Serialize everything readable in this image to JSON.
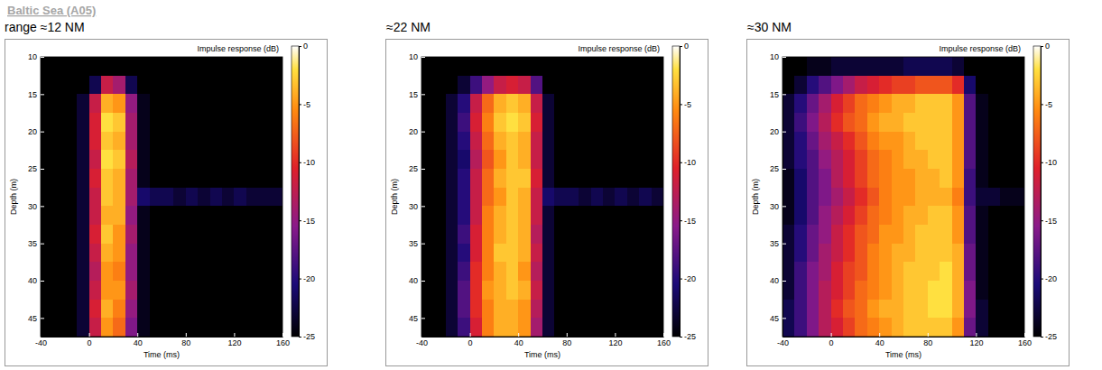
{
  "title": "Baltic Sea (A05)",
  "chart_data": [
    {
      "type": "heatmap",
      "title": "range ≈12 NM",
      "colorbar_title": "Impulse response (dB)",
      "x_label": "Time (ms)",
      "y_label": "Depth (m)",
      "xlim": [
        -40,
        160
      ],
      "ylim": [
        10,
        47.5
      ],
      "xticks": [
        -40,
        0,
        40,
        80,
        120,
        160
      ],
      "yticks": [
        10,
        15,
        20,
        25,
        30,
        35,
        40,
        45
      ],
      "color_range": [
        -25,
        0
      ],
      "color_ticks": [
        -25,
        -20,
        -15,
        -10,
        -5,
        0
      ],
      "x_bins": [
        -40,
        -30,
        -20,
        -10,
        0,
        10,
        20,
        30,
        40,
        50,
        60,
        70,
        80,
        90,
        100,
        110,
        120,
        130,
        140,
        150,
        160
      ],
      "y_bins": [
        10,
        12.5,
        15,
        17.5,
        20,
        22.5,
        25,
        27.5,
        30,
        32.5,
        35,
        37.5,
        40,
        42.5,
        45,
        47.5
      ],
      "cells": [
        [
          -25,
          -25,
          -25,
          -25,
          -25,
          -25,
          -25,
          -25,
          -25,
          -25,
          -25,
          -25,
          -25,
          -25,
          -25,
          -25,
          -25,
          -25,
          -25,
          -25
        ],
        [
          -25,
          -25,
          -25,
          -25,
          -22,
          -12,
          -14,
          -22,
          -25,
          -25,
          -25,
          -25,
          -25,
          -25,
          -25,
          -25,
          -25,
          -25,
          -25,
          -25
        ],
        [
          -25,
          -25,
          -25,
          -23,
          -12,
          -4,
          -5,
          -15,
          -24,
          -25,
          -25,
          -25,
          -25,
          -25,
          -25,
          -25,
          -25,
          -25,
          -25,
          -25
        ],
        [
          -25,
          -25,
          -25,
          -23,
          -11,
          -2,
          -3,
          -14,
          -24,
          -25,
          -25,
          -25,
          -25,
          -25,
          -25,
          -25,
          -25,
          -25,
          -25,
          -25
        ],
        [
          -25,
          -25,
          -25,
          -23,
          -11,
          -3,
          -4,
          -14,
          -24,
          -25,
          -25,
          -25,
          -25,
          -25,
          -25,
          -25,
          -25,
          -25,
          -25,
          -25
        ],
        [
          -25,
          -25,
          -25,
          -23,
          -12,
          -2,
          -3,
          -13,
          -24,
          -25,
          -25,
          -25,
          -25,
          -25,
          -25,
          -25,
          -25,
          -25,
          -25,
          -25
        ],
        [
          -25,
          -25,
          -25,
          -23,
          -11,
          -3,
          -4,
          -14,
          -24,
          -25,
          -25,
          -25,
          -25,
          -25,
          -25,
          -25,
          -25,
          -25,
          -25,
          -25
        ],
        [
          -25,
          -25,
          -25,
          -23,
          -12,
          -3,
          -4,
          -14,
          -21,
          -22,
          -22,
          -23,
          -22,
          -23,
          -22,
          -23,
          -22,
          -23,
          -23,
          -23
        ],
        [
          -25,
          -25,
          -25,
          -23,
          -12,
          -4,
          -4,
          -15,
          -24,
          -25,
          -25,
          -25,
          -25,
          -25,
          -25,
          -25,
          -25,
          -25,
          -25,
          -25
        ],
        [
          -25,
          -25,
          -25,
          -23,
          -11,
          -3,
          -5,
          -14,
          -24,
          -25,
          -25,
          -25,
          -25,
          -25,
          -25,
          -25,
          -25,
          -25,
          -25,
          -25
        ],
        [
          -25,
          -25,
          -25,
          -23,
          -12,
          -4,
          -5,
          -15,
          -24,
          -25,
          -25,
          -25,
          -25,
          -25,
          -25,
          -25,
          -25,
          -25,
          -25,
          -25
        ],
        [
          -25,
          -25,
          -25,
          -23,
          -13,
          -5,
          -6,
          -15,
          -24,
          -25,
          -25,
          -25,
          -25,
          -25,
          -25,
          -25,
          -25,
          -25,
          -25,
          -25
        ],
        [
          -25,
          -25,
          -25,
          -23,
          -12,
          -5,
          -5,
          -14,
          -24,
          -25,
          -25,
          -25,
          -25,
          -25,
          -25,
          -25,
          -25,
          -25,
          -25,
          -25
        ],
        [
          -25,
          -25,
          -25,
          -23,
          -11,
          -4,
          -6,
          -15,
          -24,
          -25,
          -25,
          -25,
          -25,
          -25,
          -25,
          -25,
          -25,
          -25,
          -25,
          -25
        ],
        [
          -25,
          -25,
          -25,
          -23,
          -12,
          -5,
          -7,
          -16,
          -24,
          -25,
          -25,
          -25,
          -25,
          -25,
          -25,
          -25,
          -25,
          -25,
          -25,
          -25
        ]
      ]
    },
    {
      "type": "heatmap",
      "title": "≈22 NM",
      "colorbar_title": "Impulse response (dB)",
      "x_label": "Time (ms)",
      "y_label": "Depth (m)",
      "xlim": [
        -40,
        160
      ],
      "ylim": [
        10,
        47.5
      ],
      "xticks": [
        -40,
        0,
        40,
        80,
        120,
        160
      ],
      "yticks": [
        10,
        15,
        20,
        25,
        30,
        35,
        40,
        45
      ],
      "color_range": [
        -25,
        0
      ],
      "color_ticks": [
        -25,
        -20,
        -15,
        -10,
        -5,
        0
      ],
      "x_bins": [
        -40,
        -30,
        -20,
        -10,
        0,
        10,
        20,
        30,
        40,
        50,
        60,
        70,
        80,
        90,
        100,
        110,
        120,
        130,
        140,
        150,
        160
      ],
      "y_bins": [
        10,
        12.5,
        15,
        17.5,
        20,
        22.5,
        25,
        27.5,
        30,
        32.5,
        35,
        37.5,
        40,
        42.5,
        45,
        47.5
      ],
      "cells": [
        [
          -25,
          -25,
          -25,
          -25,
          -25,
          -25,
          -25,
          -25,
          -25,
          -25,
          -25,
          -25,
          -25,
          -25,
          -25,
          -25,
          -25,
          -25,
          -25,
          -25
        ],
        [
          -25,
          -25,
          -25,
          -23,
          -19,
          -15,
          -12,
          -11,
          -12,
          -18,
          -25,
          -25,
          -25,
          -25,
          -25,
          -25,
          -25,
          -25,
          -25,
          -25
        ],
        [
          -25,
          -25,
          -23,
          -20,
          -12,
          -7,
          -4,
          -3,
          -4,
          -12,
          -23,
          -25,
          -25,
          -25,
          -25,
          -25,
          -25,
          -25,
          -25,
          -25
        ],
        [
          -25,
          -25,
          -23,
          -19,
          -11,
          -6,
          -3,
          -2,
          -3,
          -11,
          -23,
          -25,
          -25,
          -25,
          -25,
          -25,
          -25,
          -25,
          -25,
          -25
        ],
        [
          -25,
          -25,
          -23,
          -20,
          -12,
          -7,
          -4,
          -3,
          -4,
          -12,
          -23,
          -25,
          -25,
          -25,
          -25,
          -25,
          -25,
          -25,
          -25,
          -25
        ],
        [
          -25,
          -25,
          -23,
          -21,
          -13,
          -8,
          -5,
          -3,
          -4,
          -12,
          -23,
          -25,
          -25,
          -25,
          -25,
          -25,
          -25,
          -25,
          -25,
          -25
        ],
        [
          -25,
          -25,
          -23,
          -20,
          -12,
          -7,
          -4,
          -3,
          -3,
          -11,
          -23,
          -25,
          -25,
          -25,
          -25,
          -25,
          -25,
          -25,
          -25,
          -25
        ],
        [
          -25,
          -25,
          -23,
          -20,
          -12,
          -7,
          -5,
          -3,
          -4,
          -12,
          -21,
          -22,
          -22,
          -23,
          -22,
          -23,
          -22,
          -23,
          -22,
          -23
        ],
        [
          -25,
          -25,
          -23,
          -20,
          -12,
          -6,
          -4,
          -3,
          -4,
          -12,
          -23,
          -25,
          -25,
          -25,
          -25,
          -25,
          -25,
          -25,
          -25,
          -25
        ],
        [
          -25,
          -25,
          -23,
          -19,
          -11,
          -6,
          -4,
          -3,
          -4,
          -13,
          -23,
          -25,
          -25,
          -25,
          -25,
          -25,
          -25,
          -25,
          -25,
          -25
        ],
        [
          -25,
          -25,
          -23,
          -20,
          -11,
          -6,
          -3,
          -3,
          -4,
          -12,
          -23,
          -25,
          -25,
          -25,
          -25,
          -25,
          -25,
          -25,
          -25,
          -25
        ],
        [
          -25,
          -25,
          -23,
          -19,
          -10,
          -6,
          -4,
          -3,
          -5,
          -13,
          -23,
          -25,
          -25,
          -25,
          -25,
          -25,
          -25,
          -25,
          -25,
          -25
        ],
        [
          -25,
          -25,
          -23,
          -18,
          -10,
          -5,
          -4,
          -3,
          -4,
          -12,
          -23,
          -25,
          -25,
          -25,
          -25,
          -25,
          -25,
          -25,
          -25,
          -25
        ],
        [
          -25,
          -25,
          -23,
          -18,
          -10,
          -6,
          -4,
          -4,
          -5,
          -13,
          -23,
          -25,
          -25,
          -25,
          -25,
          -25,
          -25,
          -25,
          -25,
          -25
        ],
        [
          -25,
          -25,
          -23,
          -19,
          -11,
          -6,
          -4,
          -4,
          -5,
          -14,
          -23,
          -25,
          -25,
          -25,
          -25,
          -25,
          -25,
          -25,
          -25,
          -25
        ]
      ]
    },
    {
      "type": "heatmap",
      "title": "≈30 NM",
      "colorbar_title": "Impulse response (dB)",
      "x_label": "Time (ms)",
      "y_label": "Depth (m)",
      "xlim": [
        -40,
        160
      ],
      "ylim": [
        10,
        47.5
      ],
      "xticks": [
        -40,
        0,
        40,
        80,
        120,
        160
      ],
      "yticks": [
        10,
        15,
        20,
        25,
        30,
        35,
        40,
        45
      ],
      "color_range": [
        -25,
        0
      ],
      "color_ticks": [
        -25,
        -20,
        -15,
        -10,
        -5,
        0
      ],
      "x_bins": [
        -40,
        -30,
        -20,
        -10,
        0,
        10,
        20,
        30,
        40,
        50,
        60,
        70,
        80,
        90,
        100,
        110,
        120,
        130,
        140,
        150,
        160
      ],
      "y_bins": [
        10,
        12.5,
        15,
        17.5,
        20,
        22.5,
        25,
        27.5,
        30,
        32.5,
        35,
        37.5,
        40,
        42.5,
        45,
        47.5
      ],
      "cells": [
        [
          -25,
          -25,
          -24,
          -24,
          -23,
          -23,
          -23,
          -23,
          -23,
          -23,
          -22,
          -22,
          -22,
          -22,
          -23,
          -25,
          -25,
          -25,
          -25,
          -25
        ],
        [
          -25,
          -23,
          -20,
          -18,
          -16,
          -14,
          -12,
          -11,
          -10,
          -9,
          -9,
          -8,
          -8,
          -8,
          -10,
          -21,
          -25,
          -25,
          -25,
          -25
        ],
        [
          -23,
          -20,
          -17,
          -14,
          -11,
          -9,
          -7,
          -6,
          -5,
          -4,
          -4,
          -3,
          -3,
          -3,
          -5,
          -18,
          -24,
          -25,
          -25,
          -25
        ],
        [
          -23,
          -19,
          -16,
          -13,
          -10,
          -8,
          -7,
          -5,
          -4,
          -4,
          -3,
          -3,
          -3,
          -3,
          -5,
          -18,
          -24,
          -25,
          -25,
          -25
        ],
        [
          -23,
          -20,
          -17,
          -14,
          -12,
          -10,
          -8,
          -6,
          -5,
          -5,
          -4,
          -3,
          -3,
          -3,
          -5,
          -18,
          -24,
          -25,
          -25,
          -25
        ],
        [
          -23,
          -20,
          -18,
          -15,
          -13,
          -11,
          -9,
          -7,
          -6,
          -5,
          -4,
          -4,
          -3,
          -3,
          -5,
          -18,
          -24,
          -25,
          -25,
          -25
        ],
        [
          -24,
          -21,
          -18,
          -16,
          -13,
          -11,
          -9,
          -7,
          -6,
          -5,
          -5,
          -4,
          -4,
          -3,
          -5,
          -19,
          -24,
          -25,
          -25,
          -25
        ],
        [
          -24,
          -21,
          -18,
          -16,
          -14,
          -12,
          -10,
          -8,
          -6,
          -5,
          -5,
          -4,
          -4,
          -4,
          -6,
          -19,
          -23,
          -23,
          -24,
          -24
        ],
        [
          -24,
          -21,
          -18,
          -15,
          -13,
          -11,
          -9,
          -7,
          -6,
          -5,
          -4,
          -4,
          -3,
          -3,
          -5,
          -18,
          -24,
          -25,
          -25,
          -25
        ],
        [
          -23,
          -20,
          -17,
          -15,
          -12,
          -10,
          -8,
          -7,
          -5,
          -5,
          -4,
          -3,
          -3,
          -3,
          -5,
          -18,
          -24,
          -25,
          -25,
          -25
        ],
        [
          -23,
          -20,
          -17,
          -14,
          -12,
          -10,
          -8,
          -6,
          -5,
          -4,
          -4,
          -3,
          -3,
          -3,
          -4,
          -17,
          -24,
          -25,
          -25,
          -25
        ],
        [
          -23,
          -19,
          -16,
          -14,
          -11,
          -9,
          -8,
          -6,
          -5,
          -4,
          -3,
          -3,
          -3,
          -2,
          -4,
          -17,
          -24,
          -25,
          -25,
          -25
        ],
        [
          -23,
          -19,
          -16,
          -13,
          -11,
          -9,
          -7,
          -6,
          -5,
          -4,
          -3,
          -3,
          -2,
          -2,
          -4,
          -16,
          -24,
          -25,
          -25,
          -25
        ],
        [
          -22,
          -19,
          -16,
          -13,
          -10,
          -8,
          -7,
          -5,
          -4,
          -4,
          -3,
          -3,
          -2,
          -2,
          -4,
          -16,
          -23,
          -25,
          -25,
          -25
        ],
        [
          -22,
          -19,
          -16,
          -13,
          -11,
          -9,
          -7,
          -6,
          -5,
          -4,
          -3,
          -3,
          -3,
          -3,
          -5,
          -17,
          -23,
          -25,
          -25,
          -25
        ]
      ]
    }
  ]
}
